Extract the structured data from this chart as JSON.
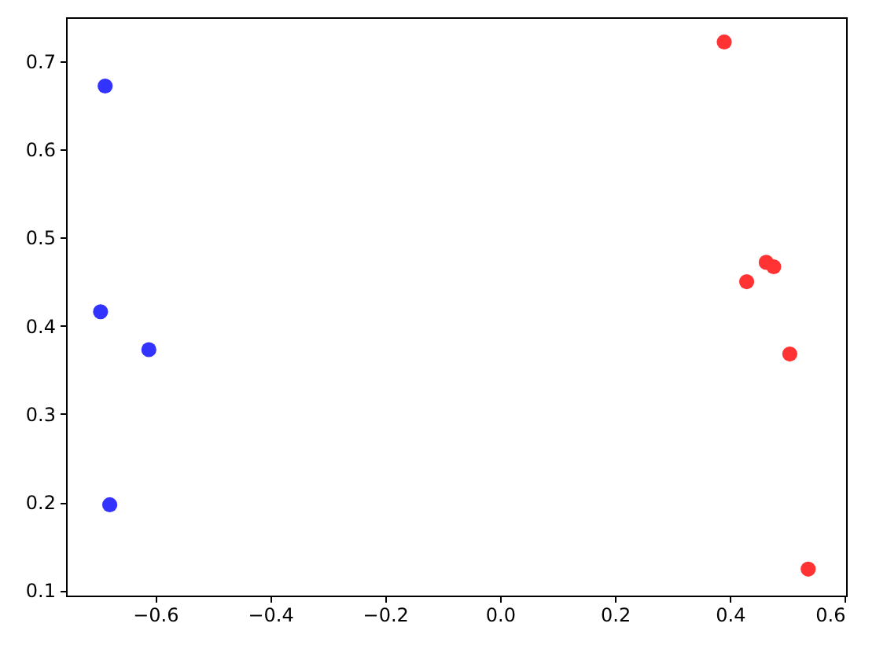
{
  "chart_data": {
    "type": "scatter",
    "marker": "circle",
    "series": [
      {
        "color": "#3333ff",
        "x": [
          -0.687,
          -0.695,
          -0.611,
          -0.679
        ],
        "values": [
          0.672,
          0.416,
          0.373,
          0.197
        ]
      },
      {
        "color": "#ff3333",
        "x": [
          0.39,
          0.463,
          0.476,
          0.429,
          0.504,
          0.536
        ],
        "values": [
          0.722,
          0.472,
          0.467,
          0.45,
          0.368,
          0.124
        ]
      }
    ],
    "xlim": [
      -0.755,
      0.602
    ],
    "ylim": [
      0.094,
      0.75
    ],
    "xticks": [
      -0.6,
      -0.4,
      -0.2,
      {
        "value": 0.0,
        "label": "0.0"
      },
      0.2,
      0.4,
      0.6
    ],
    "yticks": [
      0.1,
      0.2,
      0.3,
      0.4,
      0.5,
      0.6,
      0.7
    ]
  }
}
